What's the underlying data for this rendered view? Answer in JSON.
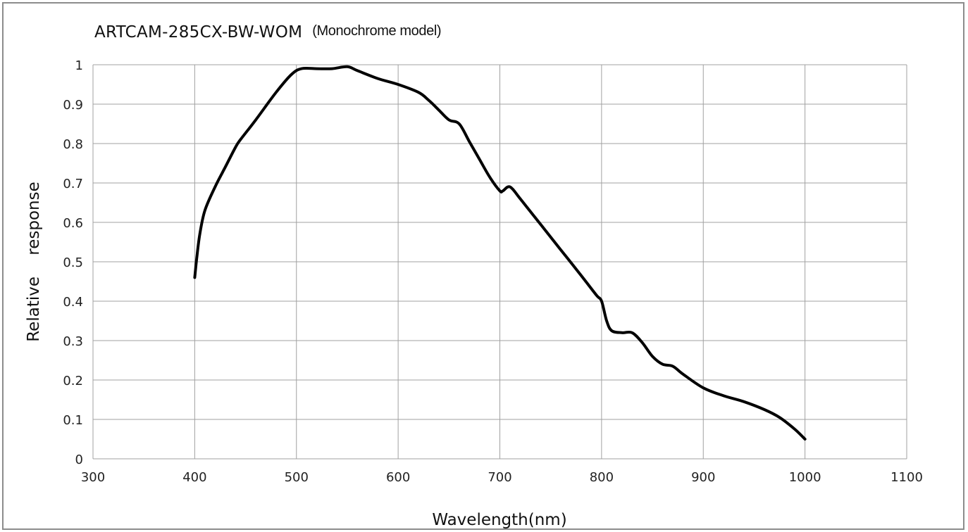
{
  "chart_data": {
    "type": "line",
    "title": "ARTCAM-285CX-BW-WOM",
    "subtitle": "(Monochrome model)",
    "xlabel": "Wavelength(nm)",
    "ylabel": "Relative　 response",
    "xlim": [
      300,
      1100
    ],
    "ylim": [
      0,
      1
    ],
    "xticks": [
      300,
      400,
      500,
      600,
      700,
      800,
      900,
      1000,
      1100
    ],
    "yticks": [
      0,
      0.1,
      0.2,
      0.3,
      0.4,
      0.5,
      0.6,
      0.7,
      0.8,
      0.9,
      1
    ],
    "grid": true,
    "legend": "none",
    "line_color": "#000000",
    "grid_color": "#a0a0a0",
    "series": [
      {
        "x": [
          400,
          402,
          405,
          410,
          420,
          430,
          440,
          445,
          460,
          480,
          495,
          505,
          520,
          535,
          550,
          560,
          580,
          600,
          620,
          630,
          640,
          650,
          660,
          670,
          680,
          690,
          700,
          703,
          710,
          720,
          740,
          760,
          780,
          795,
          800,
          805,
          810,
          820,
          830,
          840,
          850,
          860,
          870,
          880,
          900,
          920,
          940,
          960,
          975,
          990,
          1000
        ],
        "values": [
          0.46,
          0.51,
          0.57,
          0.63,
          0.69,
          0.74,
          0.79,
          0.81,
          0.86,
          0.93,
          0.975,
          0.99,
          0.99,
          0.99,
          0.995,
          0.985,
          0.965,
          0.95,
          0.93,
          0.91,
          0.885,
          0.86,
          0.85,
          0.805,
          0.76,
          0.715,
          0.68,
          0.68,
          0.69,
          0.66,
          0.595,
          0.53,
          0.465,
          0.415,
          0.4,
          0.35,
          0.325,
          0.32,
          0.32,
          0.295,
          0.26,
          0.24,
          0.235,
          0.215,
          0.18,
          0.16,
          0.145,
          0.125,
          0.105,
          0.075,
          0.05
        ]
      }
    ]
  }
}
